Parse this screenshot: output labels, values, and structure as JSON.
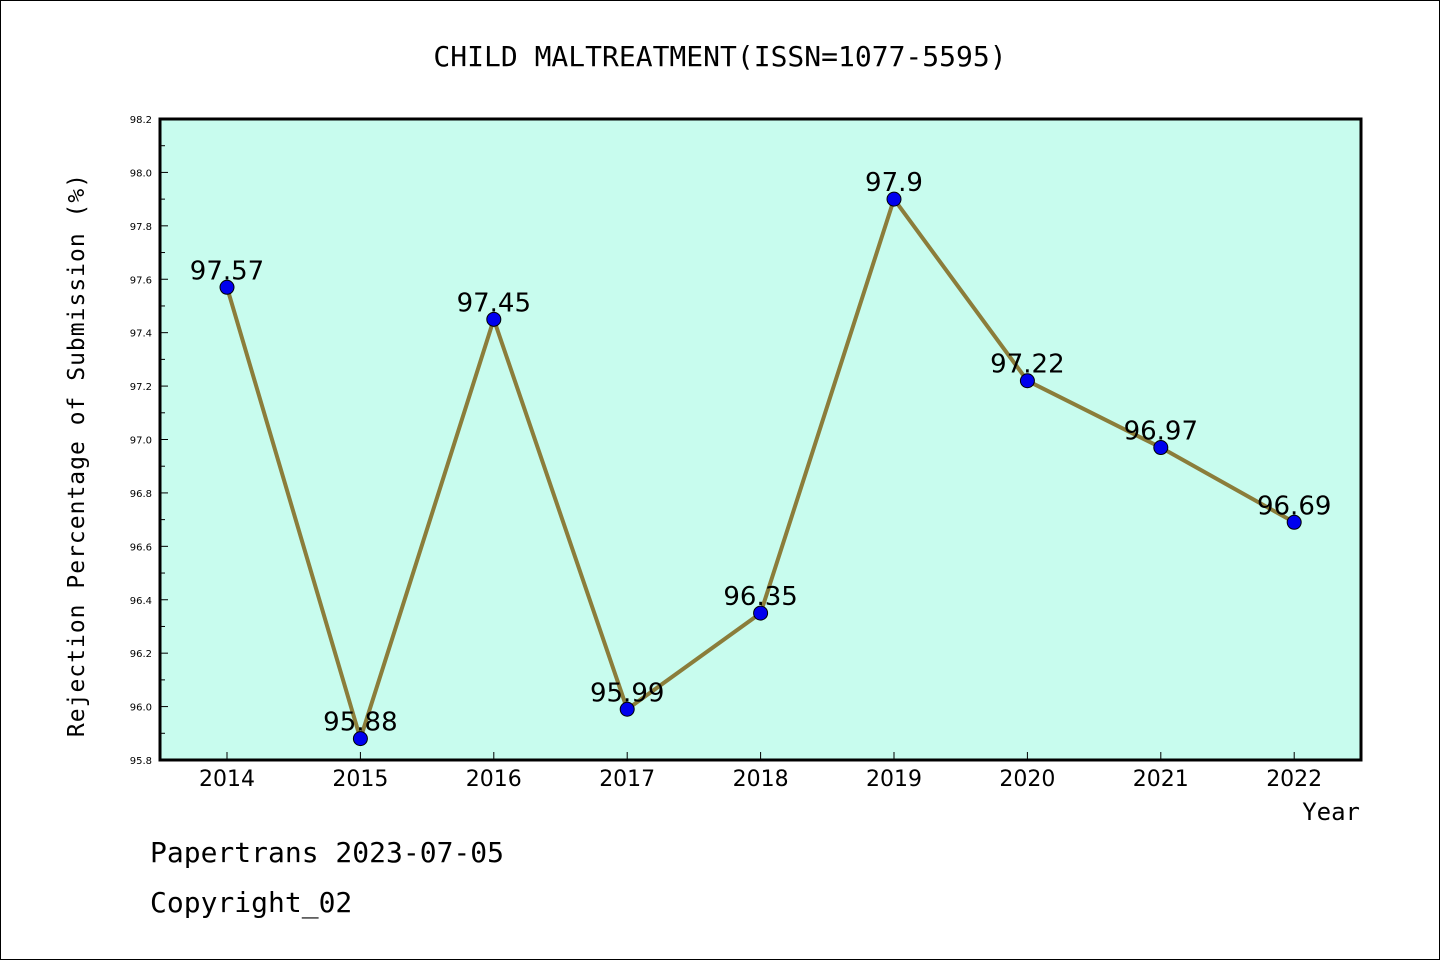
{
  "chart_data": {
    "type": "line",
    "title": "CHILD MALTREATMENT(ISSN=1077-5595)",
    "xlabel": "Year",
    "ylabel": "Rejection Percentage of Submission (%)",
    "categories": [
      "2014",
      "2015",
      "2016",
      "2017",
      "2018",
      "2019",
      "2020",
      "2021",
      "2022"
    ],
    "values": [
      97.57,
      95.88,
      97.45,
      95.99,
      96.35,
      97.9,
      97.22,
      96.97,
      96.69
    ],
    "data_labels": [
      "97.57",
      "95.88",
      "97.45",
      "95.99",
      "96.35",
      "97.9",
      "97.22",
      "96.97",
      "96.69"
    ],
    "ylim": [
      95.8,
      98.2
    ],
    "yticks": [
      "95.8",
      "96.0",
      "96.2",
      "96.4",
      "96.6",
      "96.8",
      "97.0",
      "97.2",
      "97.4",
      "97.6",
      "97.8",
      "98.0",
      "98.2"
    ],
    "grid": false,
    "colors": {
      "plot_background": "#c8fcee",
      "line": "#8b7d3a",
      "marker": "#0000ee"
    }
  },
  "footer": {
    "line1": "Papertrans 2023-07-05",
    "line2": "Copyright_02"
  }
}
